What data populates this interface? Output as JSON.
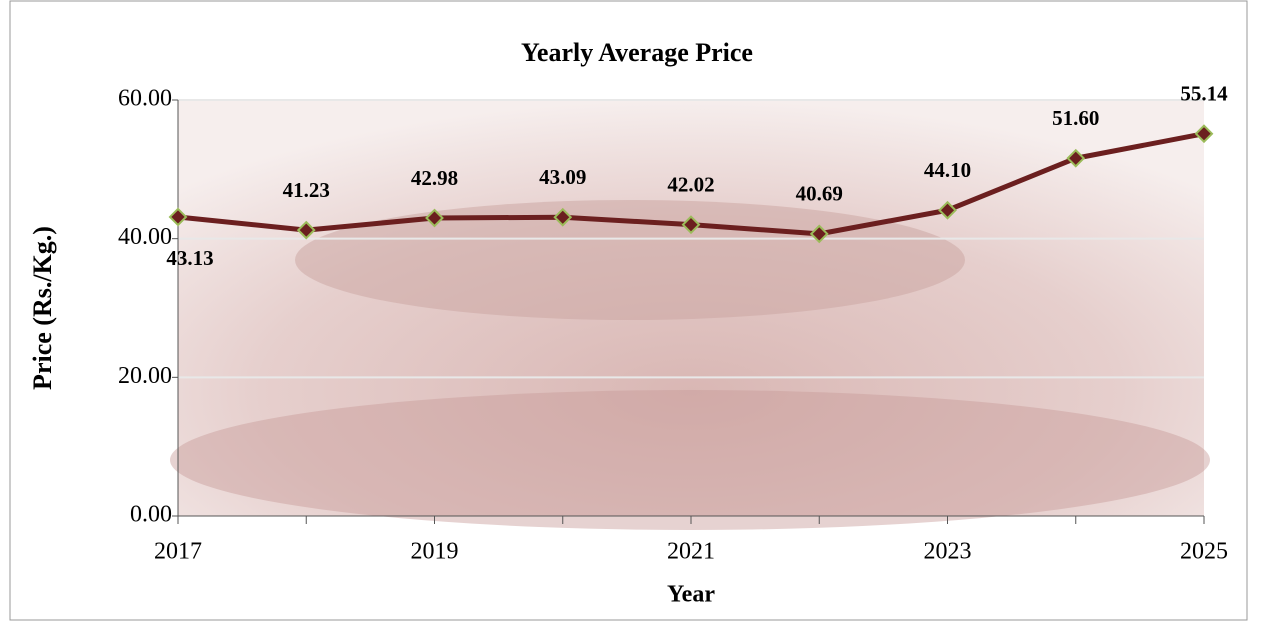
{
  "chart_data": {
    "type": "line",
    "title": "Yearly Average Price",
    "x_label": "Year",
    "y_label": "Price (Rs./Kg.)",
    "x": [
      2017,
      2018,
      2019,
      2020,
      2021,
      2022,
      2023,
      2024,
      2025
    ],
    "xlim": [
      2017,
      2025
    ],
    "xticks": [
      2017,
      2019,
      2021,
      2023,
      2025
    ],
    "ylim": [
      0,
      60
    ],
    "yticks": [
      {
        "value": 0,
        "label": "0.00"
      },
      {
        "value": 20,
        "label": "20.00"
      },
      {
        "value": 40,
        "label": "40.00"
      },
      {
        "value": 60,
        "label": "60.00"
      }
    ],
    "grid": true,
    "series": [
      {
        "name": "Yearly Average Price",
        "color": "#6b1f1f",
        "marker_edge": "#9bbb59",
        "values": [
          43.13,
          41.23,
          42.98,
          43.09,
          42.02,
          40.69,
          44.1,
          51.6,
          55.14
        ],
        "value_labels": [
          "43.13",
          "41.23",
          "42.98",
          "43.09",
          "42.02",
          "40.69",
          "44.10",
          "51.60",
          "55.14"
        ]
      }
    ]
  }
}
